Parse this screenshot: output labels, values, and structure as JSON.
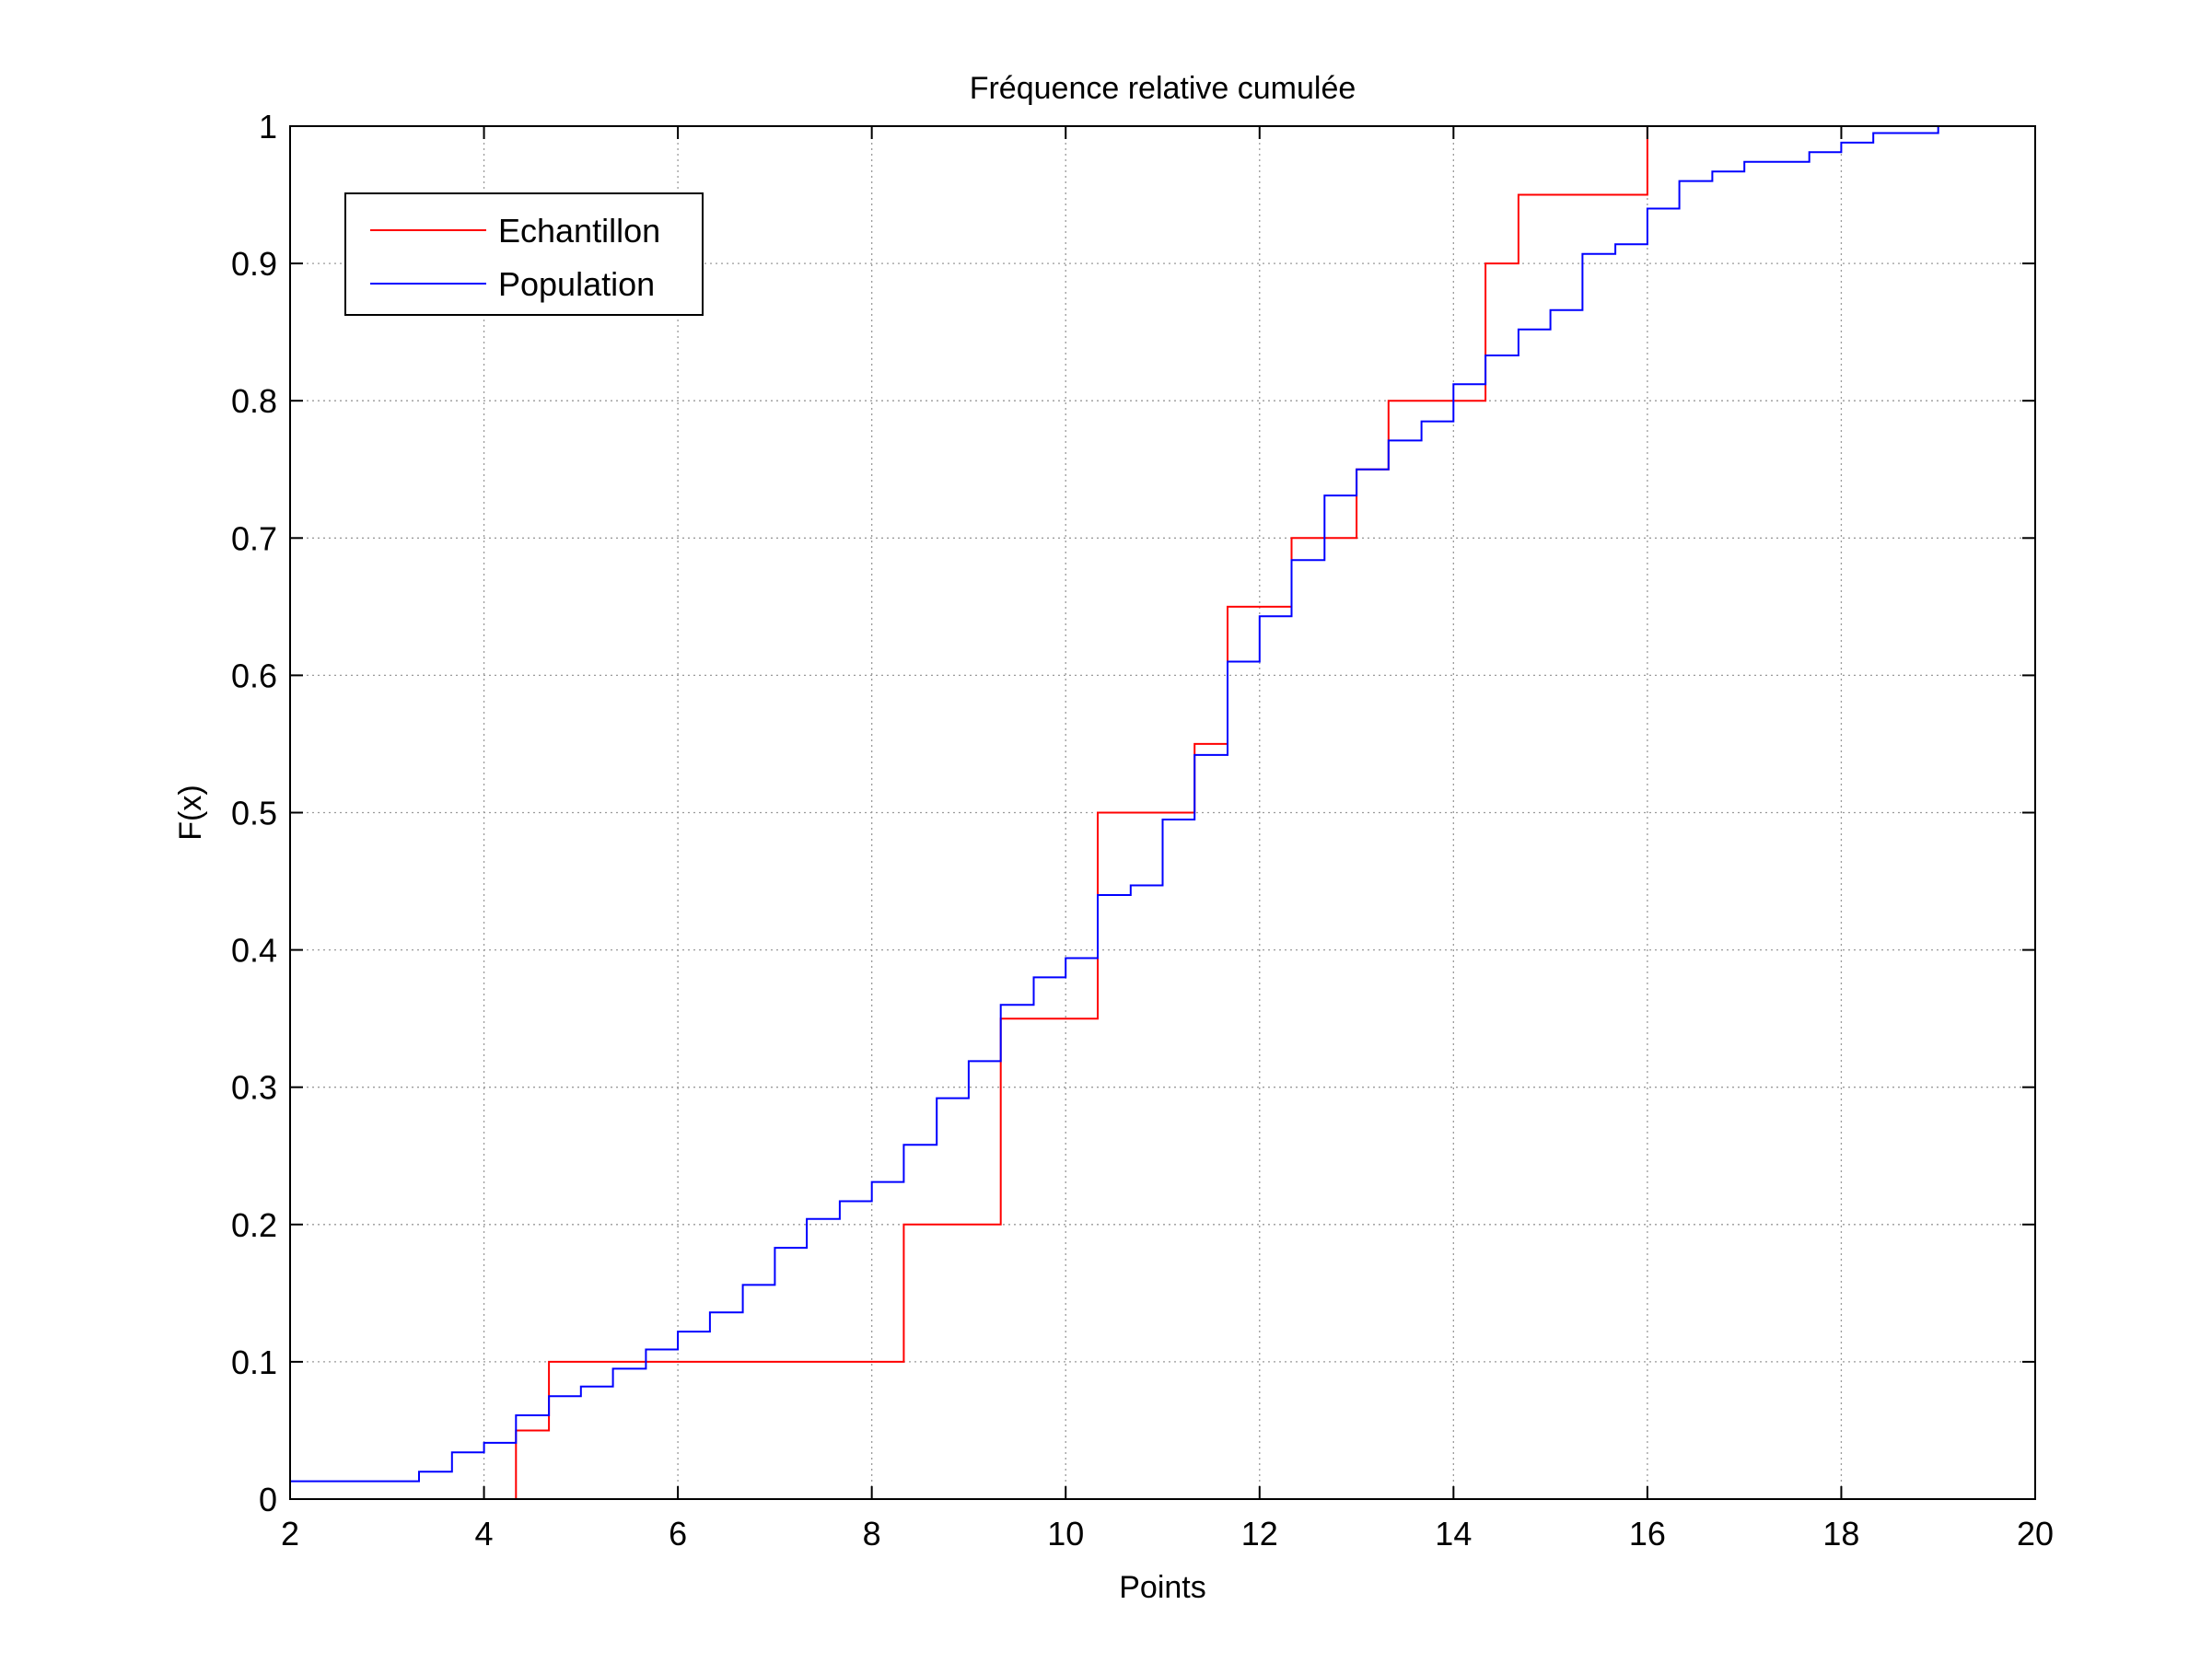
{
  "chart_data": {
    "type": "line",
    "drawstyle": "stairs",
    "title": "Fréquence relative cumulée",
    "xlabel": "Points",
    "ylabel": "F(x)",
    "xlim": [
      2,
      20
    ],
    "ylim": [
      0,
      1
    ],
    "xticks": [
      2,
      4,
      6,
      8,
      10,
      12,
      14,
      16,
      18,
      20
    ],
    "yticks": [
      0,
      0.1,
      0.2,
      0.3,
      0.4,
      0.5,
      0.6,
      0.7,
      0.8,
      0.9,
      1
    ],
    "x_tick_labels": [
      "2",
      "4",
      "6",
      "8",
      "10",
      "12",
      "14",
      "16",
      "18",
      "20"
    ],
    "y_tick_labels": [
      "0",
      "0.1",
      "0.2",
      "0.3",
      "0.4",
      "0.5",
      "0.6",
      "0.7",
      "0.8",
      "0.9",
      "1"
    ],
    "grid": true,
    "legend": {
      "position": "top-left",
      "entries": [
        "Echantillon",
        "Population"
      ]
    },
    "series": [
      {
        "name": "Echantillon",
        "color": "#ff0000",
        "x": [
          4.33,
          4.33,
          4.67,
          4.67,
          8.33,
          8.33,
          9.33,
          9.33,
          10.33,
          10.33,
          11.33,
          11.33,
          11.67,
          11.67,
          12.33,
          12.33,
          13.0,
          13.0,
          13.33,
          13.33,
          14.33,
          14.33,
          14.67,
          14.67,
          16.0,
          16.0
        ],
        "y": [
          0,
          0.05,
          0.05,
          0.1,
          0.1,
          0.2,
          0.2,
          0.35,
          0.35,
          0.5,
          0.5,
          0.55,
          0.55,
          0.65,
          0.65,
          0.7,
          0.7,
          0.75,
          0.75,
          0.8,
          0.8,
          0.9,
          0.9,
          0.95,
          0.95,
          1.0
        ]
      },
      {
        "name": "Population",
        "color": "#0000ff",
        "x": [
          2.0,
          3.33,
          3.33,
          3.67,
          3.67,
          4.0,
          4.0,
          4.33,
          4.33,
          4.67,
          4.67,
          5.0,
          5.0,
          5.33,
          5.33,
          5.67,
          5.67,
          6.0,
          6.0,
          6.33,
          6.33,
          6.67,
          6.67,
          7.0,
          7.0,
          7.33,
          7.33,
          7.67,
          7.67,
          8.0,
          8.0,
          8.33,
          8.33,
          8.67,
          8.67,
          9.0,
          9.0,
          9.33,
          9.33,
          9.67,
          9.67,
          10.0,
          10.0,
          10.33,
          10.33,
          10.67,
          10.67,
          11.0,
          11.0,
          11.33,
          11.33,
          11.67,
          11.67,
          12.0,
          12.0,
          12.33,
          12.33,
          12.67,
          12.67,
          13.0,
          13.0,
          13.33,
          13.33,
          13.67,
          13.67,
          14.0,
          14.0,
          14.33,
          14.33,
          14.67,
          14.67,
          15.0,
          15.0,
          15.33,
          15.33,
          15.67,
          15.67,
          16.0,
          16.0,
          16.33,
          16.33,
          16.67,
          16.67,
          17.0,
          17.0,
          17.67,
          17.67,
          18.0,
          18.0,
          18.33,
          18.33,
          19.0,
          19.0
        ],
        "y": [
          0.013,
          0.013,
          0.02,
          0.02,
          0.034,
          0.034,
          0.041,
          0.041,
          0.061,
          0.061,
          0.075,
          0.075,
          0.082,
          0.082,
          0.095,
          0.095,
          0.109,
          0.109,
          0.122,
          0.122,
          0.136,
          0.136,
          0.156,
          0.156,
          0.183,
          0.183,
          0.204,
          0.204,
          0.217,
          0.217,
          0.231,
          0.231,
          0.258,
          0.258,
          0.292,
          0.292,
          0.319,
          0.319,
          0.36,
          0.36,
          0.38,
          0.38,
          0.394,
          0.394,
          0.44,
          0.44,
          0.447,
          0.447,
          0.495,
          0.495,
          0.542,
          0.542,
          0.61,
          0.61,
          0.643,
          0.643,
          0.684,
          0.684,
          0.731,
          0.731,
          0.75,
          0.75,
          0.771,
          0.771,
          0.785,
          0.785,
          0.812,
          0.812,
          0.833,
          0.833,
          0.852,
          0.852,
          0.866,
          0.866,
          0.907,
          0.907,
          0.914,
          0.914,
          0.94,
          0.94,
          0.96,
          0.96,
          0.967,
          0.967,
          0.974,
          0.974,
          0.981,
          0.981,
          0.988,
          0.988,
          0.995,
          0.995,
          1.0
        ]
      }
    ]
  }
}
